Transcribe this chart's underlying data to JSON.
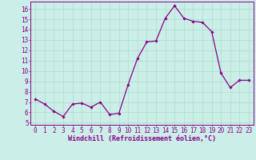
{
  "x": [
    0,
    1,
    2,
    3,
    4,
    5,
    6,
    7,
    8,
    9,
    10,
    11,
    12,
    13,
    14,
    15,
    16,
    17,
    18,
    19,
    20,
    21,
    22,
    23
  ],
  "y": [
    7.3,
    6.8,
    6.1,
    5.6,
    6.8,
    6.9,
    6.5,
    7.0,
    5.8,
    5.9,
    8.7,
    11.2,
    12.8,
    12.9,
    15.1,
    16.3,
    15.1,
    14.8,
    14.7,
    13.8,
    9.8,
    8.4,
    9.1,
    9.1
  ],
  "line_color": "#880088",
  "marker": "D",
  "marker_size": 1.8,
  "line_width": 0.9,
  "bg_color": "#cceee8",
  "grid_color": "#aaddcc",
  "xlabel": "Windchill (Refroidissement éolien,°C)",
  "xlabel_color": "#880088",
  "tick_color": "#880088",
  "spine_color": "#880088",
  "xlim": [
    -0.5,
    23.5
  ],
  "ylim": [
    4.8,
    16.7
  ],
  "yticks": [
    5,
    6,
    7,
    8,
    9,
    10,
    11,
    12,
    13,
    14,
    15,
    16
  ],
  "xticks": [
    0,
    1,
    2,
    3,
    4,
    5,
    6,
    7,
    8,
    9,
    10,
    11,
    12,
    13,
    14,
    15,
    16,
    17,
    18,
    19,
    20,
    21,
    22,
    23
  ],
  "axis_fontsize": 5.5,
  "xlabel_fontsize": 6.0
}
